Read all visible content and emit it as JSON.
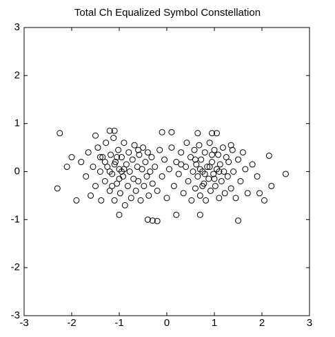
{
  "chart_data": {
    "type": "scatter",
    "title": "Total Ch Equalized Symbol Constellation",
    "xlim": [
      -3,
      3
    ],
    "ylim": [
      -3,
      3
    ],
    "xticks": [
      -3,
      -2,
      -1,
      0,
      1,
      2,
      3
    ],
    "yticks": [
      -3,
      -2,
      -1,
      0,
      1,
      2,
      3
    ],
    "color": "#000000",
    "marker": "circle",
    "x": [
      -2.25,
      -2.3,
      2.5,
      2.15,
      2.2,
      2.05,
      1.95,
      1.5,
      -0.4,
      -0.3,
      -0.2,
      0.2,
      0.7,
      -1.0,
      0.1,
      -0.1,
      0.95,
      1.05,
      0.65,
      -1.1,
      -1.2,
      -1.5,
      -1.9,
      -2.0,
      -2.1,
      -1.8,
      -1.7,
      -1.65,
      -1.6,
      -1.55,
      -1.5,
      -1.45,
      -1.4,
      -1.38,
      -1.35,
      -1.3,
      -1.28,
      -1.25,
      -1.2,
      -1.18,
      -1.15,
      -1.12,
      -1.1,
      -1.08,
      -1.05,
      -1.02,
      -1.0,
      -0.98,
      -0.95,
      -0.92,
      -0.9,
      -0.88,
      -0.85,
      -0.82,
      -0.8,
      -0.78,
      -0.75,
      -0.72,
      -0.7,
      -0.68,
      -0.65,
      -0.62,
      -0.6,
      -0.58,
      -0.55,
      -0.52,
      -0.5,
      -0.48,
      -0.45,
      -0.42,
      -0.4,
      -0.38,
      -0.35,
      -0.32,
      -0.3,
      -0.25,
      -0.2,
      -0.15,
      -0.1,
      -0.05,
      0.0,
      0.05,
      0.1,
      0.15,
      0.2,
      0.25,
      0.3,
      0.35,
      0.4,
      0.42,
      0.45,
      0.5,
      0.52,
      0.55,
      0.58,
      0.6,
      0.62,
      0.65,
      0.68,
      0.7,
      0.72,
      0.75,
      0.78,
      0.8,
      0.82,
      0.85,
      0.88,
      0.9,
      0.92,
      0.95,
      0.98,
      1.0,
      1.02,
      1.05,
      1.08,
      1.1,
      1.12,
      1.15,
      1.18,
      1.2,
      1.22,
      1.25,
      1.28,
      1.3,
      1.35,
      1.38,
      1.4,
      1.45,
      1.5,
      1.55,
      1.6,
      1.65,
      1.7,
      1.8,
      1.9,
      -1.2,
      -1.1,
      -1.0,
      -0.9,
      -1.3,
      -1.15,
      -0.95,
      -1.05,
      0.7,
      0.8,
      0.9,
      1.0,
      0.6,
      0.75,
      0.95,
      1.1,
      -1.4,
      -0.6,
      0.3,
      1.35
    ],
    "values": [
      0.8,
      -0.35,
      -0.05,
      0.33,
      -0.3,
      -0.6,
      -0.45,
      -1.02,
      -1.0,
      -1.02,
      -1.03,
      -0.9,
      -0.9,
      -0.9,
      0.82,
      0.82,
      0.8,
      0.8,
      0.8,
      0.85,
      0.85,
      0.75,
      -0.6,
      0.3,
      0.1,
      0.2,
      -0.1,
      0.4,
      -0.5,
      0.1,
      -0.3,
      0.5,
      0.0,
      -0.6,
      0.3,
      -0.2,
      0.6,
      0.1,
      -0.4,
      0.35,
      -0.05,
      0.7,
      -0.6,
      0.2,
      -0.25,
      0.45,
      0.05,
      -0.45,
      0.3,
      -0.1,
      0.6,
      -0.7,
      0.15,
      -0.3,
      0.4,
      0.0,
      -0.55,
      0.25,
      -0.15,
      0.55,
      -0.4,
      0.1,
      -0.2,
      0.35,
      -0.6,
      0.05,
      0.5,
      -0.3,
      0.2,
      -0.1,
      0.4,
      -0.5,
      0.0,
      0.3,
      -0.25,
      0.1,
      -0.4,
      0.45,
      -0.1,
      0.25,
      -0.55,
      0.05,
      0.5,
      -0.3,
      0.2,
      -0.05,
      0.4,
      -0.45,
      0.1,
      0.6,
      -0.2,
      0.3,
      -0.6,
      0.0,
      0.45,
      -0.35,
      0.15,
      -0.1,
      0.55,
      -0.5,
      0.25,
      0.0,
      -0.25,
      0.4,
      -0.6,
      0.1,
      -0.15,
      0.6,
      -0.4,
      0.2,
      -0.05,
      0.45,
      -0.3,
      0.05,
      0.35,
      -0.55,
      0.15,
      -0.2,
      0.5,
      0.0,
      -0.45,
      0.3,
      -0.1,
      0.2,
      -0.35,
      0.45,
      0.0,
      -0.55,
      0.25,
      -0.2,
      0.4,
      0.05,
      -0.45,
      0.15,
      -0.1,
      0.0,
      0.15,
      -0.15,
      0.05,
      0.2,
      -0.3,
      0.0,
      0.3,
      0.05,
      -0.05,
      0.1,
      -0.15,
      0.25,
      -0.3,
      0.35,
      0.0,
      0.3,
      0.45,
      0.15,
      0.55
    ]
  }
}
